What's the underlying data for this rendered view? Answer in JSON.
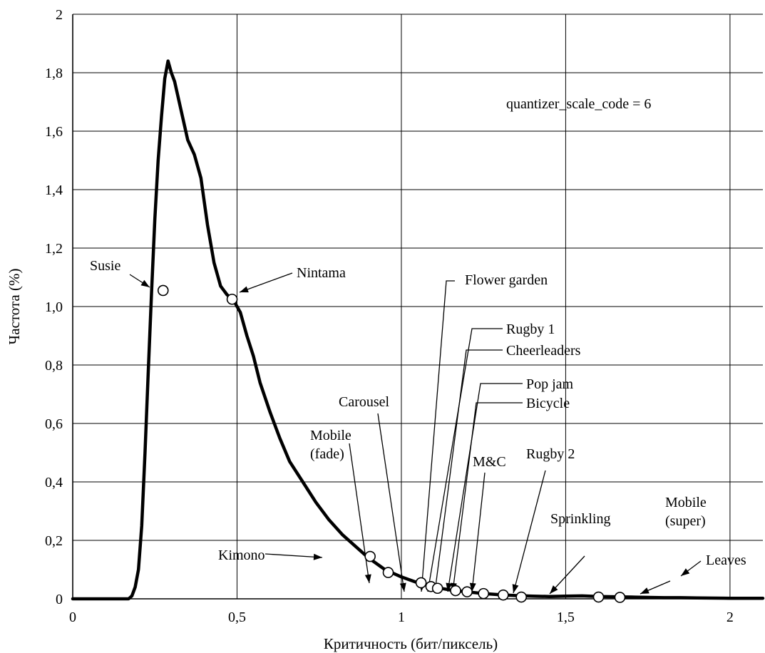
{
  "chart_data": {
    "type": "line",
    "xlabel": "Критичность (бит/пиксель)",
    "ylabel": "Частота (%)",
    "xlim": [
      0,
      2.1
    ],
    "ylim": [
      0,
      2
    ],
    "xticks": [
      {
        "value": 0,
        "label": "0"
      },
      {
        "value": 0.5,
        "label": "0,5"
      },
      {
        "value": 1,
        "label": "1"
      },
      {
        "value": 1.5,
        "label": "1,5"
      },
      {
        "value": 2,
        "label": "2"
      }
    ],
    "yticks": [
      {
        "value": 0,
        "label": "0"
      },
      {
        "value": 0.2,
        "label": "0,2"
      },
      {
        "value": 0.4,
        "label": "0,4"
      },
      {
        "value": 0.6,
        "label": "0,6"
      },
      {
        "value": 0.8,
        "label": "0,8"
      },
      {
        "value": 1.0,
        "label": "1,0"
      },
      {
        "value": 1.2,
        "label": "1,2"
      },
      {
        "value": 1.4,
        "label": "1,4"
      },
      {
        "value": 1.6,
        "label": "1,6"
      },
      {
        "value": 1.8,
        "label": "1,8"
      },
      {
        "value": 2,
        "label": "2"
      }
    ],
    "grid": true,
    "annotation": "quantizer_scale_code = 6",
    "series": [
      {
        "x": [
          0,
          0.17,
          0.18,
          0.19,
          0.2,
          0.21,
          0.22,
          0.23,
          0.24,
          0.25,
          0.26,
          0.27,
          0.28,
          0.29,
          0.3,
          0.31,
          0.32,
          0.33,
          0.35,
          0.37,
          0.39,
          0.41,
          0.43,
          0.45,
          0.47,
          0.49,
          0.51,
          0.53,
          0.55,
          0.57,
          0.6,
          0.63,
          0.66,
          0.7,
          0.74,
          0.78,
          0.82,
          0.86,
          0.9,
          0.95,
          1.0,
          1.05,
          1.1,
          1.15,
          1.2,
          1.25,
          1.3,
          1.35,
          1.4,
          1.45,
          1.5,
          1.55,
          1.6,
          1.65,
          1.7,
          1.75,
          1.8,
          1.85,
          1.9,
          2.0,
          2.1
        ],
        "y": [
          0,
          0,
          0.01,
          0.04,
          0.1,
          0.25,
          0.5,
          0.78,
          1.05,
          1.3,
          1.5,
          1.65,
          1.78,
          1.84,
          1.8,
          1.77,
          1.72,
          1.67,
          1.57,
          1.52,
          1.44,
          1.28,
          1.15,
          1.07,
          1.04,
          1.02,
          0.98,
          0.9,
          0.83,
          0.74,
          0.64,
          0.55,
          0.47,
          0.4,
          0.33,
          0.27,
          0.22,
          0.18,
          0.14,
          0.1,
          0.075,
          0.055,
          0.04,
          0.03,
          0.024,
          0.018,
          0.014,
          0.011,
          0.009,
          0.008,
          0.009,
          0.01,
          0.008,
          0.007,
          0.006,
          0.005,
          0.004,
          0.004,
          0.003,
          0.002,
          0.002
        ]
      }
    ],
    "points": [
      {
        "name": "Susie",
        "x": 0.275,
        "y": 1.055
      },
      {
        "name": "Nintama",
        "x": 0.485,
        "y": 1.025
      },
      {
        "name": "Kimono",
        "x": 0.905,
        "y": 0.145
      },
      {
        "name": "Mobile (fade)",
        "x": 0.96,
        "y": 0.09
      },
      {
        "name": "Carousel",
        "x": 1.06,
        "y": 0.055
      },
      {
        "name": "Flower garden",
        "x": 1.09,
        "y": 0.042
      },
      {
        "name": "Rugby 1 / Cheerleaders",
        "x": 1.11,
        "y": 0.036
      },
      {
        "name": "Pop jam",
        "x": 1.165,
        "y": 0.028
      },
      {
        "name": "Bicycle",
        "x": 1.2,
        "y": 0.024
      },
      {
        "name": "M&C",
        "x": 1.25,
        "y": 0.018
      },
      {
        "name": "Rugby 2",
        "x": 1.31,
        "y": 0.013
      },
      {
        "name": "Sprinkling",
        "x": 1.365,
        "y": 0.006
      },
      {
        "name": "Mobile (super)",
        "x": 1.6,
        "y": 0.006
      },
      {
        "name": "Leaves",
        "x": 1.665,
        "y": 0.005
      }
    ],
    "labels": [
      {
        "text": "Susie",
        "lines": [
          "Susie"
        ]
      },
      {
        "text": "Nintama",
        "lines": [
          "Nintama"
        ]
      },
      {
        "text": "Kimono",
        "lines": [
          "Kimono"
        ]
      },
      {
        "text": "Mobile (fade)",
        "lines": [
          "Mobile",
          "(fade)"
        ]
      },
      {
        "text": "Carousel",
        "lines": [
          "Carousel"
        ]
      },
      {
        "text": "Flower garden",
        "lines": [
          "Flower garden"
        ]
      },
      {
        "text": "Rugby 1",
        "lines": [
          "Rugby 1"
        ]
      },
      {
        "text": "Cheerleaders",
        "lines": [
          "Cheerleaders"
        ]
      },
      {
        "text": "Pop jam",
        "lines": [
          "Pop jam"
        ]
      },
      {
        "text": "Bicycle",
        "lines": [
          "Bicycle"
        ]
      },
      {
        "text": "M&C",
        "lines": [
          "M&C"
        ]
      },
      {
        "text": "Rugby 2",
        "lines": [
          "Rugby 2"
        ]
      },
      {
        "text": "Sprinkling",
        "lines": [
          "Sprinkling"
        ]
      },
      {
        "text": "Mobile (super)",
        "lines": [
          "Mobile",
          "(super)"
        ]
      },
      {
        "text": "Leaves",
        "lines": [
          "Leaves"
        ]
      }
    ]
  }
}
